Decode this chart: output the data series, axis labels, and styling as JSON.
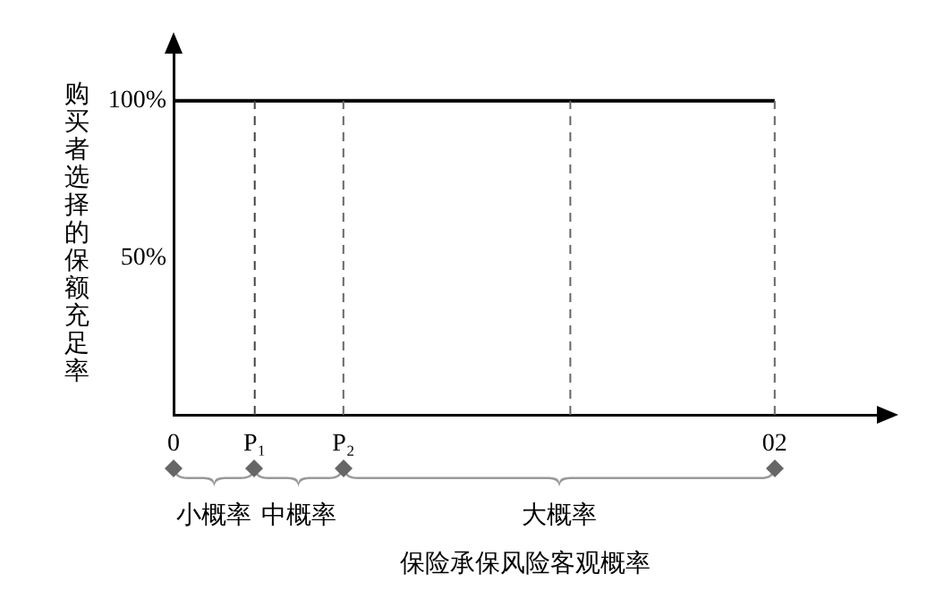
{
  "chart_data": {
    "type": "line",
    "ylabel": "购买者选择的保额充足率",
    "xlabel": "保险承保风险客观概率",
    "x": [
      0,
      2
    ],
    "values": [
      100,
      100
    ],
    "color": "#000000",
    "xlim": [
      0,
      2.34
    ],
    "xticks": [
      0,
      {
        "value": 0.27,
        "label": "P₁"
      },
      {
        "value": 0.565,
        "label": "P₂"
      },
      {
        "value": 2,
        "label": "02"
      }
    ],
    "ylim": [
      0,
      115
    ],
    "yticks": [
      {
        "value": 50,
        "label": "50%"
      },
      {
        "value": 100,
        "label": "100%"
      }
    ],
    "ref_lines": [
      {
        "axis": "x",
        "value": 0.27,
        "color": "#444444",
        "line_style": "dashed"
      },
      {
        "axis": "x",
        "value": 0.565,
        "color": "#666666",
        "line_style": "dashed"
      },
      {
        "axis": "x",
        "value": 1.32,
        "color": "#666666",
        "line_style": "dashed"
      },
      {
        "axis": "x",
        "value": 2,
        "color": "#666666",
        "line_style": "dashed"
      }
    ],
    "annotations": [
      "小概率",
      "中概率",
      "大概率"
    ],
    "grid": false,
    "legend": false
  }
}
